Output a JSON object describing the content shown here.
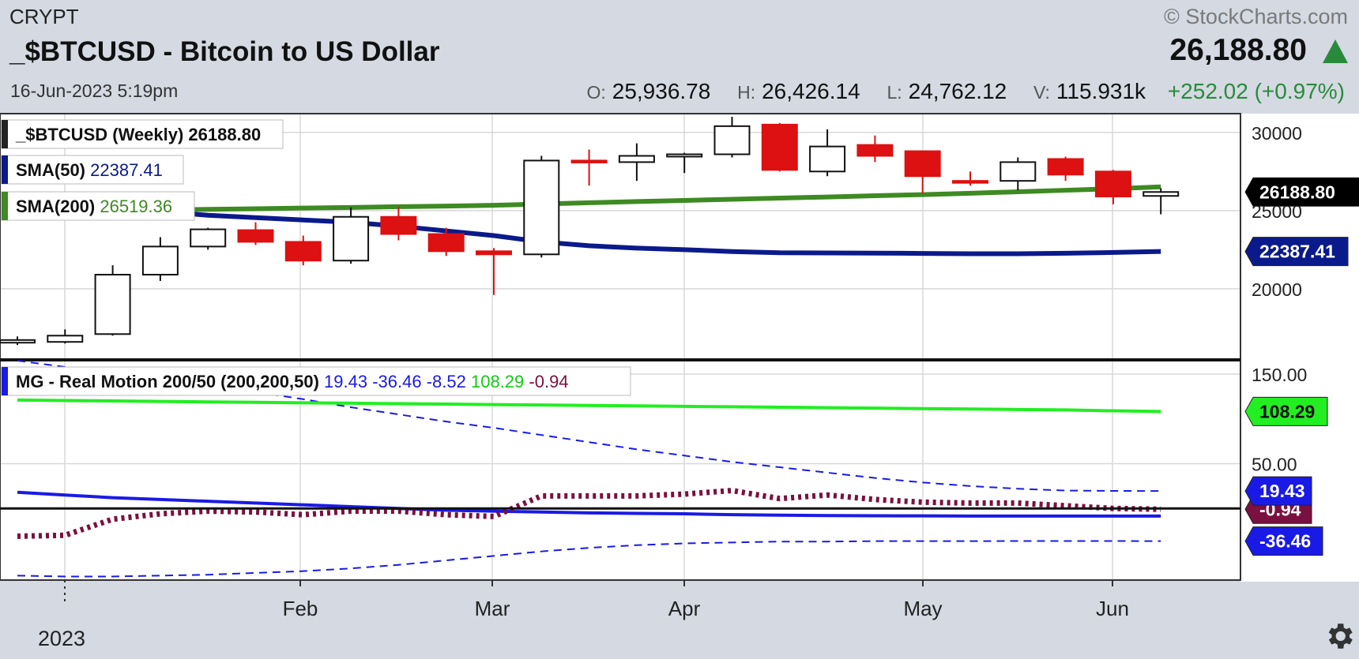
{
  "header": {
    "exchange": "CRYPT",
    "title": "_$BTCUSD - Bitcoin to US Dollar",
    "date": "16-Jun-2023 5:19pm",
    "brand": "© StockCharts.com",
    "price": "26,188.80",
    "ohlc": {
      "o_label": "O:",
      "o": "25,936.78",
      "h_label": "H:",
      "h": "26,426.14",
      "l_label": "L:",
      "l": "24,762.12",
      "v_label": "V:",
      "v": "115.931k",
      "change": "+252.02 (+0.97%)"
    }
  },
  "colors": {
    "up": "#ffffff",
    "down": "#dd1111",
    "sma50": "#0b1a8a",
    "sma200": "#3e8a23",
    "mg_green": "#22ee22",
    "mg_blue": "#1a1ae6",
    "mg_maroon": "#7a1040",
    "background": "#ffffff"
  },
  "chart_data": [
    {
      "type": "candlestick",
      "title": "_$BTCUSD (Weekly) 26188.80",
      "ylim": [
        15500,
        31200
      ],
      "y_ticks": [
        20000,
        25000,
        30000
      ],
      "y_tick_labels": [
        "20000",
        "25000",
        "30000"
      ],
      "x_labels": [
        "Feb",
        "Mar",
        "Apr",
        "May",
        "Jun"
      ],
      "year_label": "2023",
      "grid": true,
      "weeks": [
        "2022-12-26",
        "2023-01-02",
        "2023-01-09",
        "2023-01-16",
        "2023-01-23",
        "2023-01-30",
        "2023-02-06",
        "2023-02-13",
        "2023-02-20",
        "2023-02-27",
        "2023-03-06",
        "2023-03-13",
        "2023-03-20",
        "2023-03-27",
        "2023-04-03",
        "2023-04-10",
        "2023-04-17",
        "2023-04-24",
        "2023-05-01",
        "2023-05-08",
        "2023-05-15",
        "2023-05-22",
        "2023-05-29",
        "2023-06-05",
        "2023-06-12"
      ],
      "ohlc": [
        [
          16550,
          16950,
          16400,
          16720
        ],
        [
          16600,
          17400,
          16500,
          17000
        ],
        [
          17100,
          21500,
          17000,
          20900
        ],
        [
          20900,
          23300,
          20500,
          22700
        ],
        [
          22700,
          23900,
          22500,
          23800
        ],
        [
          23750,
          24250,
          22800,
          23000
        ],
        [
          23000,
          23400,
          21500,
          21800
        ],
        [
          21800,
          25200,
          21600,
          24600
        ],
        [
          24600,
          25250,
          23100,
          23500
        ],
        [
          23500,
          23900,
          22100,
          22400
        ],
        [
          22400,
          22600,
          19600,
          22200
        ],
        [
          22200,
          28500,
          22000,
          28200
        ],
        [
          28200,
          28900,
          26600,
          28100
        ],
        [
          28100,
          29300,
          26900,
          28500
        ],
        [
          28450,
          28700,
          27400,
          28600
        ],
        [
          28600,
          31000,
          28400,
          30400
        ],
        [
          30500,
          30600,
          27500,
          27600
        ],
        [
          27500,
          30200,
          27200,
          29100
        ],
        [
          29200,
          29800,
          28100,
          28500
        ],
        [
          28800,
          28800,
          26100,
          27200
        ],
        [
          26900,
          27500,
          26600,
          26800
        ],
        [
          26900,
          28400,
          26300,
          28100
        ],
        [
          28300,
          28450,
          26900,
          27300
        ],
        [
          27500,
          27600,
          25400,
          25900
        ],
        [
          25936.78,
          26426.14,
          24762.12,
          26188.8
        ]
      ],
      "series": [
        {
          "name": "SMA(50)",
          "last_value": "22387.41",
          "values": [
            25600,
            25350,
            25150,
            24950,
            24700,
            24550,
            24400,
            24250,
            24000,
            23700,
            23400,
            23000,
            22750,
            22600,
            22500,
            22380,
            22300,
            22290,
            22280,
            22260,
            22240,
            22240,
            22270,
            22320,
            22387.41
          ]
        },
        {
          "name": "SMA(200)",
          "last_value": "26519.36",
          "values": [
            24900,
            24950,
            25000,
            25040,
            25080,
            25120,
            25160,
            25200,
            25250,
            25290,
            25340,
            25420,
            25500,
            25580,
            25650,
            25720,
            25800,
            25870,
            25950,
            26020,
            26110,
            26200,
            26300,
            26400,
            26519.36
          ]
        }
      ],
      "last_price_label": "26188.80"
    },
    {
      "type": "line",
      "title": "MG - Real Motion 200/50 (200,200,50)",
      "ylim": [
        -80,
        165
      ],
      "y_ticks": [
        150,
        50
      ],
      "y_tick_labels": [
        "150.00",
        "50.00"
      ],
      "grid": true,
      "series": [
        {
          "name": "19.43",
          "style": "dashed",
          "values": [
            165,
            158,
            152,
            145,
            138,
            130,
            122,
            113,
            105,
            97,
            90,
            82,
            74,
            66,
            59,
            52,
            46,
            40,
            34,
            29,
            25,
            22,
            20,
            19.6,
            19.43
          ]
        },
        {
          "name": "-36.46",
          "style": "dashed",
          "values": [
            -75,
            -76,
            -76,
            -75,
            -74,
            -72,
            -70,
            -67,
            -63,
            -58,
            -53,
            -48,
            -44,
            -41,
            -39,
            -38,
            -37,
            -37,
            -36.5,
            -36.5,
            -36.5,
            -36.4,
            -36.4,
            -36.4,
            -36.46
          ]
        },
        {
          "name": "-8.52",
          "style": "solid",
          "values": [
            18,
            15,
            12,
            10,
            8,
            6,
            4,
            2,
            0,
            -2,
            -3,
            -4,
            -5,
            -5.5,
            -6,
            -7,
            -7.5,
            -8,
            -8.2,
            -8.3,
            -8.5,
            -8.5,
            -8.5,
            -8.5,
            -8.52
          ]
        },
        {
          "name": "108.29",
          "style": "solid",
          "values": [
            121,
            120.5,
            120,
            119.5,
            119,
            118.5,
            118,
            117.5,
            117,
            116.5,
            116,
            115.5,
            115,
            114.5,
            114,
            113.5,
            113,
            112.5,
            112,
            111.5,
            111,
            110.5,
            110,
            109,
            108.29
          ]
        },
        {
          "name": "-0.94",
          "style": "dotted",
          "values": [
            -31,
            -30,
            -12,
            -6,
            -3,
            -4,
            -7,
            -3,
            -3,
            -7,
            -9,
            14,
            14,
            14,
            16,
            20,
            11,
            15,
            10,
            7,
            6,
            6,
            3,
            0,
            -0.94
          ]
        }
      ],
      "zero_line": 0
    }
  ]
}
